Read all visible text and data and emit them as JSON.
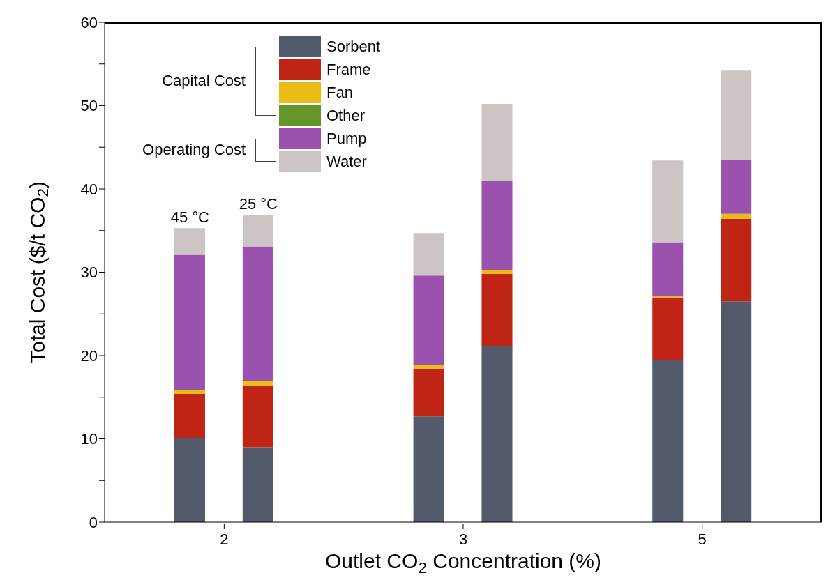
{
  "chart_data": {
    "type": "bar",
    "stacked": true,
    "xlabel": "Outlet CO$_{2}$ Concentration (%)",
    "ylabel": "Total Cost ($/t CO$_{2}$)",
    "categories": [
      null,
      null,
      null,
      "2",
      null,
      null,
      null,
      null,
      null,
      null,
      "3",
      null,
      null,
      null,
      null,
      null,
      null,
      "5",
      null,
      null,
      null
    ],
    "ylim": [
      0,
      60
    ],
    "yticks": [
      0,
      {
        "value": 5,
        "label": null
      },
      10,
      {
        "value": 15,
        "label": null
      },
      20,
      {
        "value": 25,
        "label": null
      },
      30,
      {
        "value": 35,
        "label": null
      },
      40,
      {
        "value": 45,
        "label": null
      },
      50,
      {
        "value": 55,
        "label": null
      },
      60
    ],
    "series": [
      {
        "name": "Sorbent",
        "color": "#525a6c",
        "values": [
          null,
          null,
          10.1,
          null,
          9.0,
          null,
          null,
          null,
          null,
          12.7,
          null,
          21.1,
          null,
          null,
          null,
          null,
          19.5,
          null,
          26.5,
          null,
          null
        ]
      },
      {
        "name": "Frame",
        "color": "#c02414",
        "values": [
          null,
          null,
          5.3,
          null,
          7.4,
          null,
          null,
          null,
          null,
          5.7,
          null,
          8.7,
          null,
          null,
          null,
          null,
          7.4,
          null,
          9.9,
          null,
          null
        ]
      },
      {
        "name": "Fan",
        "color": "#e9bc16",
        "values": [
          null,
          null,
          0.5,
          null,
          0.5,
          null,
          null,
          null,
          null,
          0.5,
          null,
          0.5,
          null,
          null,
          null,
          null,
          0.2,
          null,
          0.6,
          null,
          null
        ]
      },
      {
        "name": "Other",
        "color": "#62962a",
        "values": [
          null,
          null,
          0,
          null,
          0,
          null,
          null,
          null,
          null,
          0,
          null,
          0,
          null,
          null,
          null,
          null,
          0,
          null,
          0,
          null,
          null
        ]
      },
      {
        "name": "Pump",
        "color": "#9b52ae",
        "values": [
          null,
          null,
          16.2,
          null,
          16.2,
          null,
          null,
          null,
          null,
          10.7,
          null,
          10.7,
          null,
          null,
          null,
          null,
          6.5,
          null,
          6.5,
          null,
          null
        ]
      },
      {
        "name": "Water",
        "color": "#cdc5c4",
        "values": [
          null,
          null,
          3.2,
          null,
          3.8,
          null,
          null,
          null,
          null,
          5.1,
          null,
          9.2,
          null,
          null,
          null,
          null,
          9.8,
          null,
          10.7,
          null,
          null
        ]
      }
    ],
    "annotations": [
      {
        "text": "45 °C",
        "y": 35.3
      },
      {
        "text": "25 °C",
        "y": 36.9
      },
      "Capital Cost",
      "Operating Cost"
    ],
    "legend": "top left",
    "grid": false
  }
}
